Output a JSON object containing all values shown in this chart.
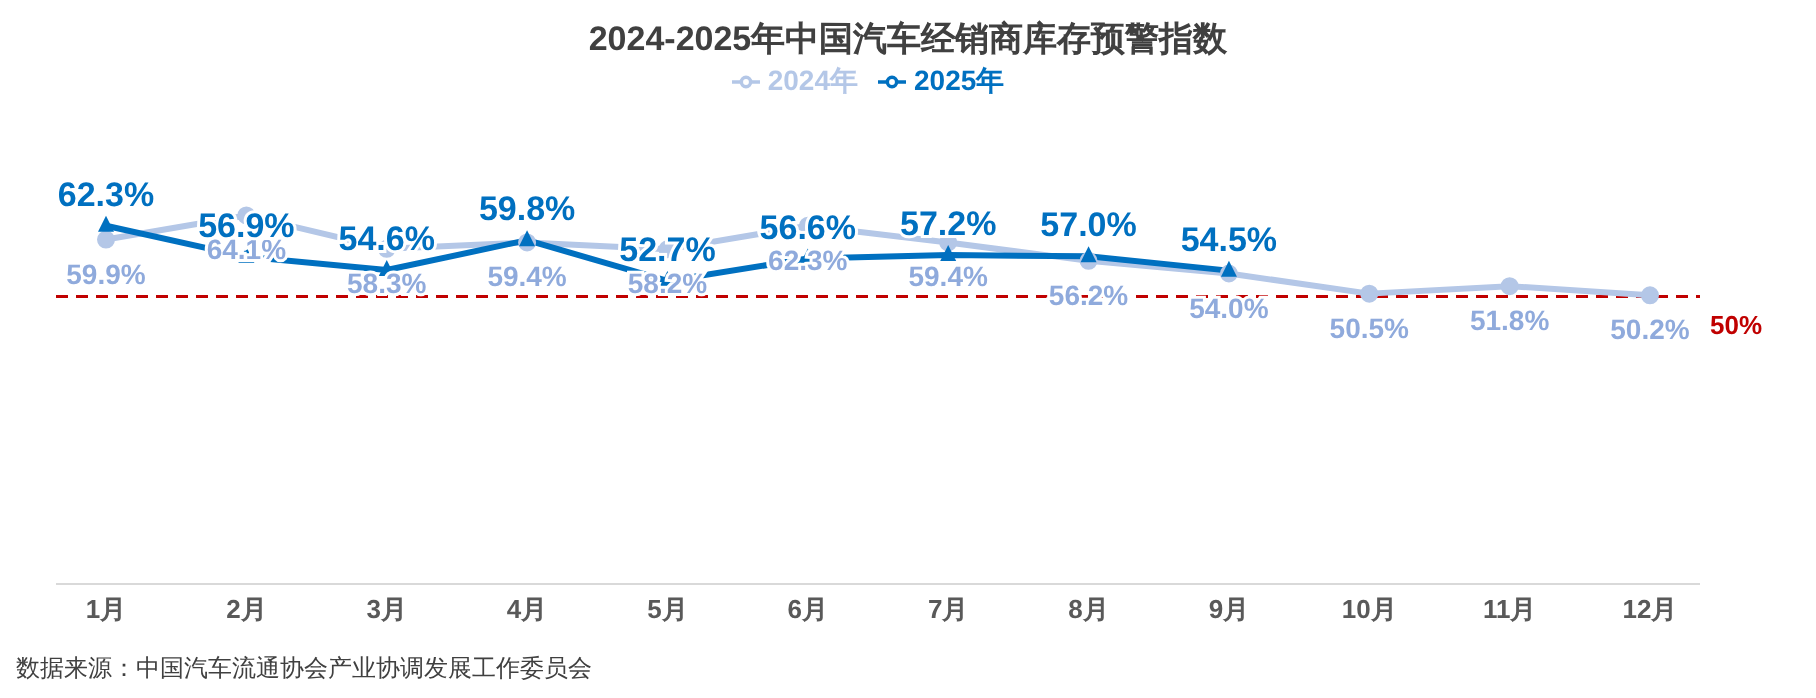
{
  "chart_data": {
    "type": "line",
    "title": "2024-2025年中国汽车经销商库存预警指数",
    "categories": [
      "1月",
      "2月",
      "3月",
      "4月",
      "5月",
      "6月",
      "7月",
      "8月",
      "9月",
      "10月",
      "11月",
      "12月"
    ],
    "series": [
      {
        "name": "2024年",
        "color": "#b4c7e7",
        "marker": "circle",
        "values": [
          59.9,
          64.1,
          58.3,
          59.4,
          58.2,
          62.3,
          59.4,
          56.2,
          54.0,
          50.5,
          51.8,
          50.2
        ],
        "value_labels": [
          "59.9%",
          "64.1%",
          "58.3%",
          "59.4%",
          "58.2%",
          "62.3%",
          "59.4%",
          "56.2%",
          "54.0%",
          "50.5%",
          "51.8%",
          "50.2%"
        ]
      },
      {
        "name": "2025年",
        "color": "#0070c0",
        "marker": "triangle",
        "values": [
          62.3,
          56.9,
          54.6,
          59.8,
          52.7,
          56.6,
          57.2,
          57.0,
          54.5,
          null,
          null,
          null
        ],
        "value_labels": [
          "62.3%",
          "56.9%",
          "54.6%",
          "59.8%",
          "52.7%",
          "56.6%",
          "57.2%",
          "57.0%",
          "54.5%",
          null,
          null,
          null
        ]
      }
    ],
    "tick_labels": "x",
    "legend": "top",
    "ref_lines": [
      {
        "axis": "y",
        "value": 50,
        "label": "50%",
        "color": "#c00000",
        "line_style": "dashed"
      }
    ],
    "annotations": [
      "数据来源：中国汽车流通协会产业协调发展工作委员会"
    ]
  }
}
